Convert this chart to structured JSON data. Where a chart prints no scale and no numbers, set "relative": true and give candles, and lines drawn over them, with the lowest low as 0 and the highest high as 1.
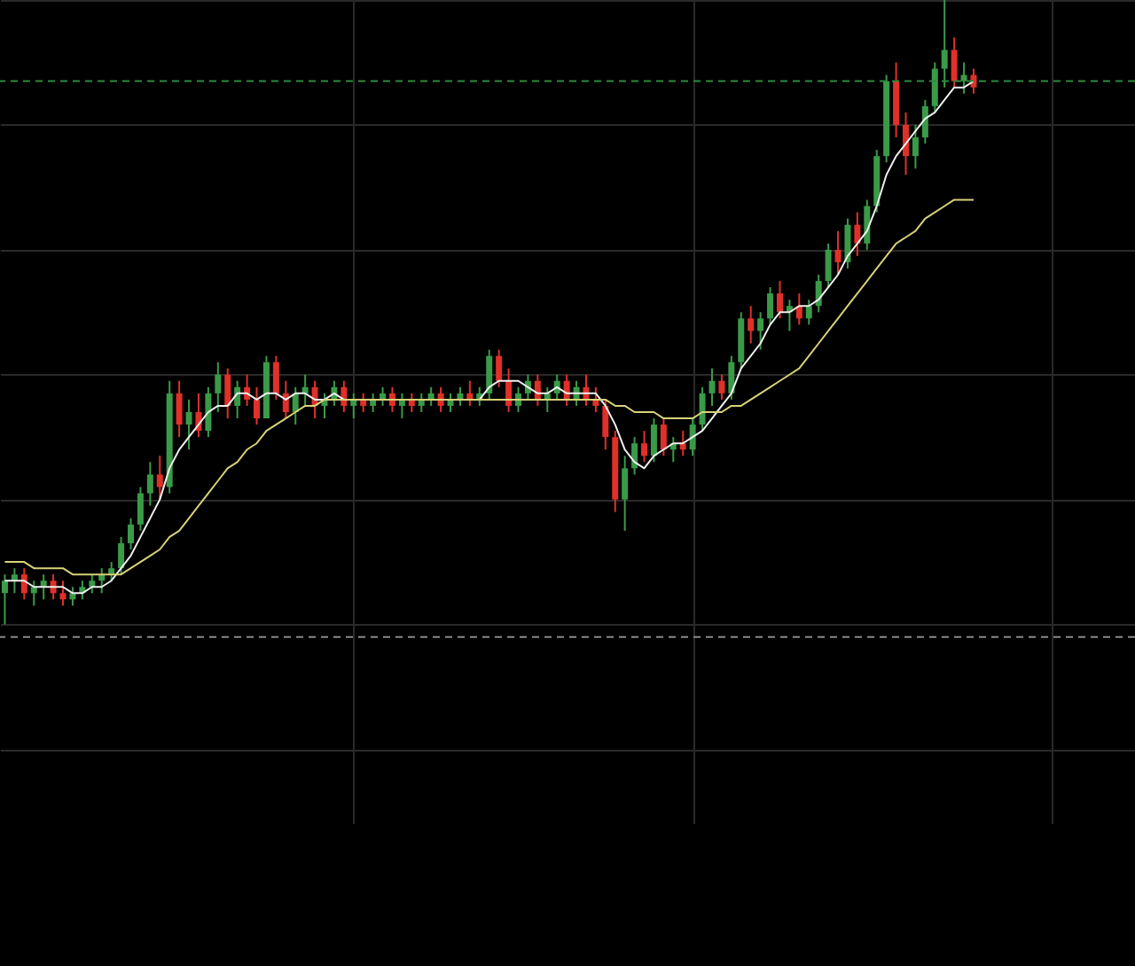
{
  "chart_data": {
    "type": "candlestick",
    "relative": true,
    "grid": true,
    "categories": [
      null,
      null,
      null,
      null,
      null,
      null,
      null,
      null,
      null,
      null,
      null,
      null,
      null,
      null,
      null,
      null,
      null,
      null,
      null,
      null,
      null,
      null,
      null,
      null,
      null,
      null,
      null,
      null,
      null,
      null,
      null,
      null,
      null,
      null,
      null,
      null,
      null,
      null,
      null,
      null,
      null,
      null,
      null,
      null,
      null,
      null,
      null,
      null,
      null,
      null,
      null,
      null,
      null,
      null,
      null,
      null,
      null,
      null,
      null,
      null,
      null,
      null,
      null,
      null,
      null,
      null,
      null,
      null,
      null,
      null,
      null,
      null,
      null,
      null,
      null,
      null,
      null,
      null,
      null,
      null,
      null,
      null,
      null,
      null,
      null,
      null,
      null,
      null,
      null,
      null,
      null,
      null,
      null,
      null,
      null,
      null,
      null,
      null,
      null,
      null,
      null
    ],
    "ohlc": [
      [
        0.05,
        0.08,
        0.0,
        0.07
      ],
      [
        0.07,
        0.09,
        0.05,
        0.08
      ],
      [
        0.08,
        0.09,
        0.04,
        0.05
      ],
      [
        0.05,
        0.07,
        0.03,
        0.06
      ],
      [
        0.06,
        0.08,
        0.04,
        0.07
      ],
      [
        0.07,
        0.08,
        0.04,
        0.05
      ],
      [
        0.05,
        0.07,
        0.03,
        0.04
      ],
      [
        0.04,
        0.06,
        0.03,
        0.05
      ],
      [
        0.05,
        0.07,
        0.04,
        0.06
      ],
      [
        0.06,
        0.08,
        0.05,
        0.07
      ],
      [
        0.07,
        0.09,
        0.05,
        0.08
      ],
      [
        0.08,
        0.1,
        0.07,
        0.09
      ],
      [
        0.09,
        0.14,
        0.08,
        0.13
      ],
      [
        0.13,
        0.17,
        0.12,
        0.16
      ],
      [
        0.16,
        0.22,
        0.15,
        0.21
      ],
      [
        0.21,
        0.26,
        0.19,
        0.24
      ],
      [
        0.24,
        0.27,
        0.2,
        0.22
      ],
      [
        0.22,
        0.39,
        0.21,
        0.37
      ],
      [
        0.37,
        0.39,
        0.3,
        0.32
      ],
      [
        0.32,
        0.36,
        0.28,
        0.34
      ],
      [
        0.34,
        0.37,
        0.3,
        0.31
      ],
      [
        0.31,
        0.38,
        0.3,
        0.37
      ],
      [
        0.37,
        0.42,
        0.34,
        0.4
      ],
      [
        0.4,
        0.41,
        0.33,
        0.35
      ],
      [
        0.35,
        0.39,
        0.33,
        0.38
      ],
      [
        0.38,
        0.4,
        0.35,
        0.36
      ],
      [
        0.36,
        0.38,
        0.32,
        0.33
      ],
      [
        0.33,
        0.43,
        0.33,
        0.42
      ],
      [
        0.42,
        0.43,
        0.36,
        0.37
      ],
      [
        0.37,
        0.39,
        0.33,
        0.34
      ],
      [
        0.34,
        0.38,
        0.32,
        0.37
      ],
      [
        0.37,
        0.4,
        0.35,
        0.38
      ],
      [
        0.38,
        0.39,
        0.33,
        0.35
      ],
      [
        0.35,
        0.37,
        0.33,
        0.36
      ],
      [
        0.36,
        0.39,
        0.35,
        0.38
      ],
      [
        0.38,
        0.39,
        0.34,
        0.35
      ],
      [
        0.35,
        0.37,
        0.33,
        0.36
      ],
      [
        0.36,
        0.37,
        0.34,
        0.35
      ],
      [
        0.35,
        0.37,
        0.34,
        0.36
      ],
      [
        0.36,
        0.38,
        0.35,
        0.37
      ],
      [
        0.37,
        0.38,
        0.34,
        0.35
      ],
      [
        0.35,
        0.37,
        0.33,
        0.36
      ],
      [
        0.36,
        0.37,
        0.34,
        0.35
      ],
      [
        0.35,
        0.37,
        0.34,
        0.36
      ],
      [
        0.36,
        0.38,
        0.35,
        0.37
      ],
      [
        0.37,
        0.38,
        0.34,
        0.35
      ],
      [
        0.35,
        0.37,
        0.34,
        0.36
      ],
      [
        0.36,
        0.38,
        0.35,
        0.37
      ],
      [
        0.37,
        0.39,
        0.35,
        0.36
      ],
      [
        0.36,
        0.38,
        0.35,
        0.37
      ],
      [
        0.37,
        0.44,
        0.36,
        0.43
      ],
      [
        0.43,
        0.44,
        0.38,
        0.39
      ],
      [
        0.39,
        0.41,
        0.34,
        0.35
      ],
      [
        0.35,
        0.38,
        0.34,
        0.37
      ],
      [
        0.37,
        0.4,
        0.36,
        0.39
      ],
      [
        0.39,
        0.4,
        0.35,
        0.36
      ],
      [
        0.36,
        0.38,
        0.34,
        0.37
      ],
      [
        0.37,
        0.4,
        0.36,
        0.39
      ],
      [
        0.39,
        0.4,
        0.35,
        0.36
      ],
      [
        0.36,
        0.39,
        0.35,
        0.38
      ],
      [
        0.38,
        0.4,
        0.35,
        0.36
      ],
      [
        0.36,
        0.38,
        0.34,
        0.35
      ],
      [
        0.35,
        0.36,
        0.28,
        0.3
      ],
      [
        0.3,
        0.31,
        0.18,
        0.2
      ],
      [
        0.2,
        0.27,
        0.15,
        0.25
      ],
      [
        0.25,
        0.3,
        0.24,
        0.29
      ],
      [
        0.29,
        0.31,
        0.26,
        0.27
      ],
      [
        0.27,
        0.33,
        0.26,
        0.32
      ],
      [
        0.32,
        0.33,
        0.27,
        0.28
      ],
      [
        0.28,
        0.3,
        0.26,
        0.29
      ],
      [
        0.29,
        0.31,
        0.27,
        0.28
      ],
      [
        0.28,
        0.33,
        0.27,
        0.32
      ],
      [
        0.32,
        0.38,
        0.31,
        0.37
      ],
      [
        0.37,
        0.41,
        0.35,
        0.39
      ],
      [
        0.39,
        0.4,
        0.36,
        0.37
      ],
      [
        0.37,
        0.43,
        0.36,
        0.42
      ],
      [
        0.42,
        0.5,
        0.41,
        0.49
      ],
      [
        0.49,
        0.51,
        0.45,
        0.47
      ],
      [
        0.47,
        0.5,
        0.44,
        0.49
      ],
      [
        0.49,
        0.54,
        0.48,
        0.53
      ],
      [
        0.53,
        0.55,
        0.49,
        0.5
      ],
      [
        0.5,
        0.52,
        0.47,
        0.51
      ],
      [
        0.51,
        0.53,
        0.48,
        0.49
      ],
      [
        0.49,
        0.52,
        0.48,
        0.51
      ],
      [
        0.51,
        0.56,
        0.5,
        0.55
      ],
      [
        0.55,
        0.61,
        0.54,
        0.6
      ],
      [
        0.6,
        0.63,
        0.56,
        0.58
      ],
      [
        0.58,
        0.65,
        0.57,
        0.64
      ],
      [
        0.64,
        0.66,
        0.59,
        0.61
      ],
      [
        0.61,
        0.68,
        0.6,
        0.67
      ],
      [
        0.67,
        0.76,
        0.66,
        0.75
      ],
      [
        0.75,
        0.88,
        0.74,
        0.87
      ],
      [
        0.87,
        0.9,
        0.78,
        0.8
      ],
      [
        0.8,
        0.82,
        0.72,
        0.75
      ],
      [
        0.75,
        0.8,
        0.73,
        0.78
      ],
      [
        0.78,
        0.84,
        0.77,
        0.83
      ],
      [
        0.83,
        0.9,
        0.82,
        0.89
      ],
      [
        0.89,
        1.0,
        0.86,
        0.92
      ],
      [
        0.92,
        0.94,
        0.86,
        0.87
      ],
      [
        0.87,
        0.9,
        0.85,
        0.88
      ],
      [
        0.88,
        0.89,
        0.85,
        0.86
      ]
    ],
    "series": [
      {
        "type": "line",
        "color": "#f0f0f0",
        "values": [
          0.07,
          0.07,
          0.07,
          0.06,
          0.06,
          0.06,
          0.06,
          0.05,
          0.05,
          0.06,
          0.06,
          0.07,
          0.09,
          0.11,
          0.14,
          0.17,
          0.2,
          0.25,
          0.28,
          0.3,
          0.32,
          0.34,
          0.35,
          0.35,
          0.37,
          0.37,
          0.36,
          0.37,
          0.37,
          0.36,
          0.37,
          0.37,
          0.36,
          0.36,
          0.37,
          0.36,
          0.36,
          0.36,
          0.36,
          0.36,
          0.36,
          0.36,
          0.36,
          0.36,
          0.36,
          0.36,
          0.36,
          0.36,
          0.36,
          0.36,
          0.38,
          0.39,
          0.39,
          0.39,
          0.38,
          0.37,
          0.37,
          0.38,
          0.37,
          0.37,
          0.37,
          0.37,
          0.35,
          0.32,
          0.28,
          0.26,
          0.25,
          0.27,
          0.28,
          0.29,
          0.29,
          0.3,
          0.31,
          0.33,
          0.35,
          0.37,
          0.41,
          0.43,
          0.45,
          0.48,
          0.5,
          0.5,
          0.51,
          0.51,
          0.52,
          0.54,
          0.56,
          0.59,
          0.61,
          0.63,
          0.67,
          0.72,
          0.75,
          0.77,
          0.79,
          0.81,
          0.82,
          0.84,
          0.86,
          0.86,
          0.87
        ]
      },
      {
        "type": "line",
        "color": "#d8d27a",
        "values": [
          0.1,
          0.1,
          0.1,
          0.09,
          0.09,
          0.09,
          0.09,
          0.08,
          0.08,
          0.08,
          0.08,
          0.08,
          0.08,
          0.09,
          0.1,
          0.11,
          0.12,
          0.14,
          0.15,
          0.17,
          0.19,
          0.21,
          0.23,
          0.25,
          0.26,
          0.28,
          0.29,
          0.31,
          0.32,
          0.33,
          0.34,
          0.35,
          0.35,
          0.36,
          0.36,
          0.36,
          0.36,
          0.36,
          0.36,
          0.36,
          0.36,
          0.36,
          0.36,
          0.36,
          0.36,
          0.36,
          0.36,
          0.36,
          0.36,
          0.36,
          0.36,
          0.36,
          0.36,
          0.36,
          0.36,
          0.36,
          0.36,
          0.36,
          0.36,
          0.36,
          0.36,
          0.36,
          0.36,
          0.35,
          0.35,
          0.34,
          0.34,
          0.34,
          0.33,
          0.33,
          0.33,
          0.33,
          0.34,
          0.34,
          0.34,
          0.35,
          0.35,
          0.36,
          0.37,
          0.38,
          0.39,
          0.4,
          0.41,
          0.43,
          0.45,
          0.47,
          0.49,
          0.51,
          0.53,
          0.55,
          0.57,
          0.59,
          0.61,
          0.62,
          0.63,
          0.65,
          0.66,
          0.67,
          0.68,
          0.68,
          0.68
        ]
      }
    ],
    "ref_lines": [
      {
        "axis": "y",
        "value": 0.87,
        "color": "#2e8b3e",
        "line_style": "dashed"
      },
      {
        "axis": "y",
        "value": -0.02,
        "color": "#8a8a8a",
        "line_style": "dashed"
      }
    ]
  }
}
